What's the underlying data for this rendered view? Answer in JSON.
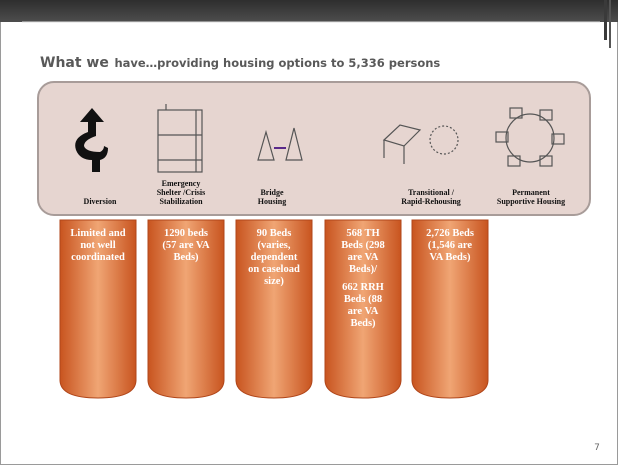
{
  "title": {
    "lead": "What we",
    "rest": "have…providing housing options to 5,336 persons"
  },
  "columns": [
    {
      "label": [
        "Diversion"
      ],
      "paragraphs": [
        [
          "Limited and",
          "not well",
          "coordinated"
        ]
      ]
    },
    {
      "label": [
        "Emergency",
        "Shelter /Crisis",
        "Stabilization"
      ],
      "paragraphs": [
        [
          "1290 beds",
          "(57 are VA",
          "Beds)"
        ]
      ]
    },
    {
      "label": [
        "Bridge",
        "Housing"
      ],
      "paragraphs": [
        [
          "90 Beds",
          "(varies,",
          "dependent",
          "on caseload",
          "size)"
        ]
      ]
    },
    {
      "label": [
        "Transitional /",
        "Rapid-Rehousing"
      ],
      "paragraphs": [
        [
          "568 TH",
          "Beds (298",
          "are VA",
          "Beds)/"
        ],
        [
          "662 RRH",
          "Beds (88",
          "are VA",
          "Beds)"
        ]
      ]
    },
    {
      "label": [
        "Permanent",
        "Supportive Housing"
      ],
      "paragraphs": [
        [
          "2,726 Beds",
          "(1,546 are",
          "VA Beds)"
        ]
      ]
    }
  ],
  "page_number": "7"
}
